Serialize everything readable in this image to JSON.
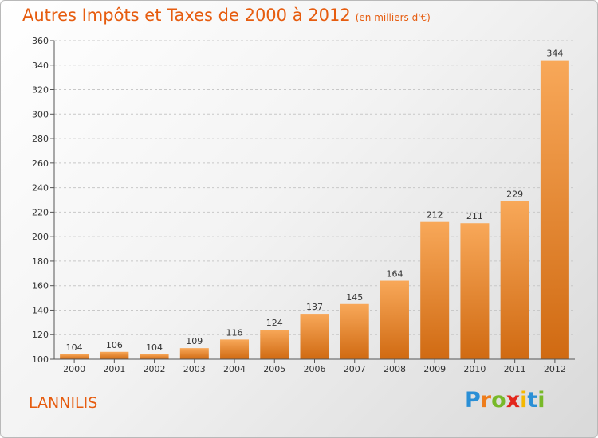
{
  "header": {
    "title": "Autres Impôts et Taxes de 2000 à 2012",
    "subtitle": "(en milliers d'€)"
  },
  "place": "LANNILIS",
  "logo": {
    "text": "Proxiti",
    "colors": [
      "#2a8fd6",
      "#ee7d1c",
      "#78b929",
      "#e2261c",
      "#f5b800",
      "#2a8fd6",
      "#78b929"
    ]
  },
  "chart_data": {
    "type": "bar",
    "title": "Autres Impôts et Taxes de 2000 à 2012",
    "subtitle": "(en milliers d'€)",
    "xlabel": "",
    "ylabel": "",
    "categories": [
      "2000",
      "2001",
      "2002",
      "2003",
      "2004",
      "2005",
      "2006",
      "2007",
      "2008",
      "2009",
      "2010",
      "2011",
      "2012"
    ],
    "values": [
      104,
      106,
      104,
      109,
      116,
      124,
      137,
      145,
      164,
      212,
      211,
      229,
      344
    ],
    "ylim": [
      100,
      360
    ],
    "yticks": [
      100,
      120,
      140,
      160,
      180,
      200,
      220,
      240,
      260,
      280,
      300,
      320,
      340,
      360
    ],
    "grid": "horizontal-dashed",
    "bar_color_light": "#f8a859",
    "bar_color_dark": "#d06a12"
  }
}
